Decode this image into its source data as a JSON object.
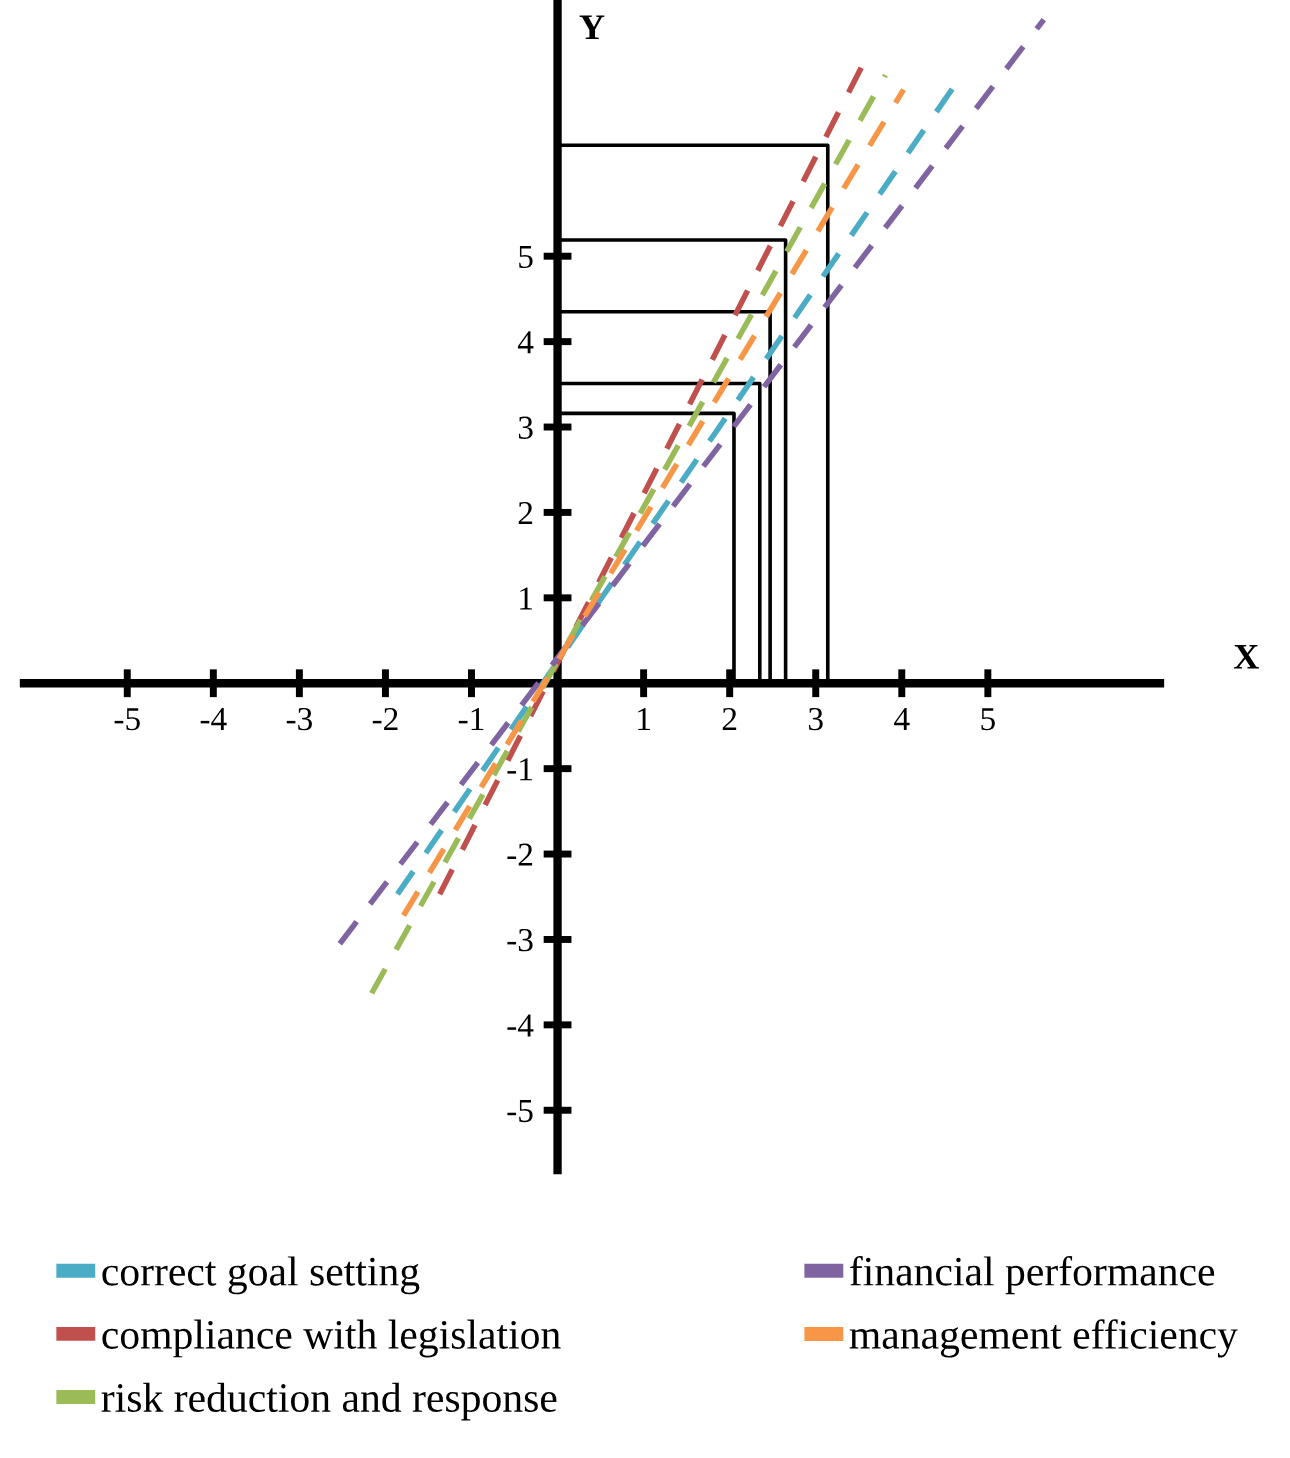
{
  "chart_data": {
    "type": "line",
    "xlabel": "X",
    "ylabel": "Y",
    "xlim": [
      -6.2,
      7.0
    ],
    "ylim": [
      -5.7,
      8.0
    ],
    "xticks": [
      -5,
      -4,
      -3,
      -2,
      -1,
      1,
      2,
      3,
      4,
      5
    ],
    "yticks": [
      -5,
      -4,
      -3,
      -2,
      -1,
      1,
      2,
      3,
      4,
      5
    ],
    "grid": false,
    "legend": "bottom",
    "line_style": "dashed",
    "marker": "none",
    "series": [
      {
        "name": "correct goal setting",
        "color": "#4bacc6",
        "x": [
          -1.86,
          4.6
        ],
        "values": [
          -2.47,
          6.98
        ]
      },
      {
        "name": "compliance with legislation",
        "color": "#c0504d",
        "x": [
          -1.37,
          3.53
        ],
        "values": [
          -2.47,
          7.21
        ]
      },
      {
        "name": "risk reduction and response",
        "color": "#9bbb59",
        "x": [
          -2.16,
          3.81
        ],
        "values": [
          -3.63,
          7.12
        ]
      },
      {
        "name": "financial performance",
        "color": "#8064a2",
        "x": [
          -2.53,
          5.65
        ],
        "values": [
          -3.05,
          7.77
        ]
      },
      {
        "name": "management efficiency",
        "color": "#f79646",
        "x": [
          -1.79,
          4.02
        ],
        "values": [
          -2.72,
          6.95
        ]
      },
      {
        "color": "#000000",
        "line_style": "solid",
        "x": [
          0,
          3.14,
          3.14
        ],
        "values": [
          6.3,
          6.3,
          0
        ]
      },
      {
        "color": "#000000",
        "line_style": "solid",
        "x": [
          0,
          2.65,
          2.65
        ],
        "values": [
          5.19,
          5.19,
          0
        ]
      },
      {
        "color": "#000000",
        "line_style": "solid",
        "x": [
          0,
          2.47,
          2.47
        ],
        "values": [
          4.35,
          4.35,
          0
        ]
      },
      {
        "color": "#000000",
        "line_style": "solid",
        "x": [
          0,
          2.35,
          2.35
        ],
        "values": [
          3.51,
          3.51,
          0
        ]
      },
      {
        "color": "#000000",
        "line_style": "solid",
        "x": [
          0,
          2.05,
          2.05
        ],
        "values": [
          3.16,
          3.16,
          0
        ]
      }
    ]
  }
}
